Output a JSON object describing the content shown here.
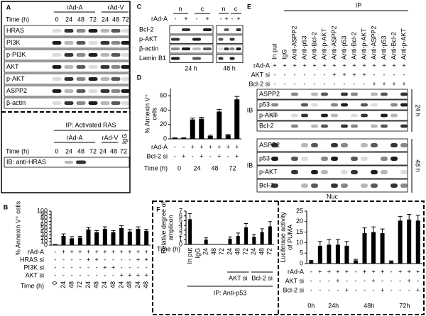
{
  "figure": {
    "A": {
      "label": "A",
      "groups": [
        "rAd-A",
        "rAd-V"
      ],
      "time_label": "Time (h)",
      "times": [
        "0",
        "24",
        "48",
        "72",
        "24",
        "48",
        "72"
      ],
      "rows": [
        "HRAS",
        "PI3K",
        "p-PI3K",
        "AKT",
        "p-AKT",
        "ASPP2",
        "β-actin"
      ],
      "ip": {
        "title": "IP: Activated RAS",
        "groups": [
          "rAd-A",
          "rAd-V",
          "IgG"
        ],
        "time_label": "Time (h)",
        "times": [
          "0",
          "24",
          "48",
          "72",
          "24",
          "48",
          "72"
        ],
        "ib": "IB: anti-HRAS"
      }
    },
    "B": {
      "label": "B",
      "type": "bar",
      "ylabel": [
        "% Annexin V⁺ cells"
      ],
      "ylim": [
        0,
        100
      ],
      "yticks": [
        0,
        10,
        20,
        30,
        40,
        50,
        60,
        70,
        80,
        90,
        100
      ],
      "color": "#000000",
      "values": [
        1,
        27,
        20,
        22,
        46,
        38,
        48,
        38,
        50,
        40,
        48,
        42
      ],
      "errors": [
        1,
        6,
        5,
        4,
        6,
        5,
        6,
        5,
        7,
        6,
        6,
        5
      ],
      "conditions": [
        {
          "label": "rAd-A",
          "signs": [
            "-",
            "+",
            "+",
            "+",
            "+",
            "+",
            "+",
            "+",
            "+",
            "+",
            "+",
            "+"
          ]
        },
        {
          "label": "HRAS si",
          "signs": [
            "-",
            "-",
            "-",
            "-",
            "+",
            "+",
            "-",
            "-",
            "-",
            "-",
            "+",
            "+"
          ]
        },
        {
          "label": "PI3K si",
          "signs": [
            "-",
            "-",
            "-",
            "-",
            "-",
            "-",
            "+",
            "+",
            "-",
            "-",
            "-",
            "-"
          ]
        },
        {
          "label": "AKT si",
          "signs": [
            "-",
            "-",
            "-",
            "-",
            "-",
            "-",
            "-",
            "-",
            "+",
            "+",
            "+",
            "+"
          ]
        }
      ],
      "category_label": "Time (h)",
      "categories": [
        "0",
        "24",
        "48",
        "72",
        "24",
        "48",
        "24",
        "48",
        "24",
        "48",
        "24",
        "48"
      ]
    },
    "C": {
      "label": "C",
      "fractions": [
        "n",
        "c",
        "n",
        "c"
      ],
      "condition": "rAd-A",
      "signs": [
        "-",
        "+",
        "-",
        "+",
        "-",
        "+",
        "-",
        "+"
      ],
      "rows": [
        "Bcl-2",
        "p-AKT",
        "β-actin",
        "Lamin B1"
      ],
      "times": [
        "24 h",
        "48 h"
      ]
    },
    "D": {
      "label": "D",
      "type": "bar",
      "ylabel": [
        "% Annexin V⁺",
        "cells"
      ],
      "ylim": [
        0,
        70
      ],
      "yticks": [
        0,
        20,
        40,
        60
      ],
      "color": "#000000",
      "values": [
        1,
        1,
        27,
        28,
        4,
        38,
        5,
        55
      ],
      "errors": [
        0.5,
        0.5,
        2,
        2,
        1,
        3,
        1,
        4
      ],
      "conditions": [
        {
          "label": "rAd-A",
          "signs": [
            "-",
            "-",
            "+",
            "+",
            "+",
            "+",
            "+",
            "+"
          ]
        },
        {
          "label": "Bcl-2 si",
          "signs": [
            "-",
            "+",
            "-",
            "+",
            "-",
            "+",
            "-",
            "+"
          ]
        }
      ],
      "category_label": "Time (h)",
      "categories": [
        "0",
        "24",
        "48",
        "72"
      ]
    },
    "E": {
      "label": "E",
      "ip": "IP",
      "columns": [
        "In put",
        "IgG",
        "Anti-ASPP2",
        "Anti-p53",
        "Anti-Bcl-2",
        "Anti-p-AKT",
        "Anti-ASPP2",
        "Anti-p53",
        "Anti-Bcl-2",
        "Anti-p-AKT",
        "Anti-ASPP2",
        "Anti-p53",
        "Anti-Bcl-2",
        "Anti-p-AKT"
      ],
      "conditions": [
        {
          "label": "rAd-A",
          "signs": [
            "+",
            "+",
            "+",
            "+",
            "+",
            "+",
            "+",
            "+",
            "+",
            "+",
            "+",
            "+",
            "+",
            "+"
          ]
        },
        {
          "label": "AKT si",
          "signs": [
            "-",
            "-",
            "-",
            "-",
            "-",
            "-",
            "+",
            "+",
            "+",
            "+",
            "-",
            "-",
            "-",
            "-"
          ]
        },
        {
          "label": "Bcl-2 si",
          "signs": [
            "-",
            "-",
            "-",
            "-",
            "-",
            "-",
            "-",
            "-",
            "-",
            "-",
            "+",
            "+",
            "+",
            "+"
          ]
        }
      ],
      "ib": "IB",
      "blots": [
        {
          "time": "24 h",
          "rows": [
            "ASPP2",
            "p53",
            "p-AKT",
            "Bcl-2"
          ]
        },
        {
          "time": "48 h",
          "rows": [
            "ASPP2",
            "p53",
            "p-AKT",
            "Bcl-2"
          ]
        }
      ],
      "fraction": "Nuc"
    },
    "F": {
      "label": "F",
      "left": {
        "type": "bar",
        "ylabel": [
          "Relative degree of",
          "amplicon"
        ],
        "ylim": [
          0,
          7
        ],
        "yticks": [
          0,
          1,
          2,
          3,
          4,
          5,
          6,
          7
        ],
        "color": "#000000",
        "values": [
          5.3,
          0,
          1,
          0,
          0,
          1.2,
          1.8,
          3.6,
          1.6,
          2.6,
          3.8
        ],
        "errors": [
          1.2,
          0,
          0.4,
          0,
          0,
          0.4,
          0.6,
          0.8,
          0.5,
          0.7,
          1
        ],
        "category_label": "Time (h)",
        "categories": [
          "In put",
          "IgG",
          "24",
          "48",
          "72",
          "24",
          "48",
          "72",
          "24",
          "48",
          "72"
        ],
        "groups": [
          "AKT si",
          "Bcl-2 si"
        ],
        "ip": "IP: Anti-p53"
      },
      "right": {
        "type": "bar",
        "ylabel": [
          "Luciferase activity",
          "of PUMA"
        ],
        "ylim": [
          0,
          25
        ],
        "yticks": [
          0,
          5,
          10,
          15,
          20,
          25
        ],
        "color": "#000000",
        "values": [
          [
            1.2
          ],
          [
            8.5,
            9,
            9,
            8.5
          ],
          [
            1.5,
            14.5,
            15,
            14.5
          ],
          [
            1,
            20.5,
            21,
            20.5
          ]
        ],
        "errors": [
          [
            0.3
          ],
          [
            2,
            2.5,
            2.5,
            2
          ],
          [
            0.5,
            2.5,
            2.5,
            2
          ],
          [
            0.3,
            2,
            2.5,
            2.5
          ]
        ],
        "conditions": [
          {
            "label": "rAd-A",
            "signs": [
              "-",
              "+",
              "+",
              "+",
              "+",
              "-",
              "+",
              "+",
              "+",
              "-",
              "+",
              "+",
              "+"
            ]
          },
          {
            "label": "AKT si",
            "signs": [
              "-",
              "-",
              "-",
              "+",
              "-",
              "-",
              "-",
              "+",
              "-",
              "-",
              "-",
              "+",
              "-"
            ]
          },
          {
            "label": "Bcl-2 si",
            "signs": [
              "-",
              "-",
              "-",
              "-",
              "+",
              "-",
              "-",
              "-",
              "+",
              "-",
              "-",
              "-",
              "+"
            ]
          }
        ],
        "categories": [
          "0h",
          "24h",
          "48h",
          "72h"
        ]
      }
    }
  }
}
